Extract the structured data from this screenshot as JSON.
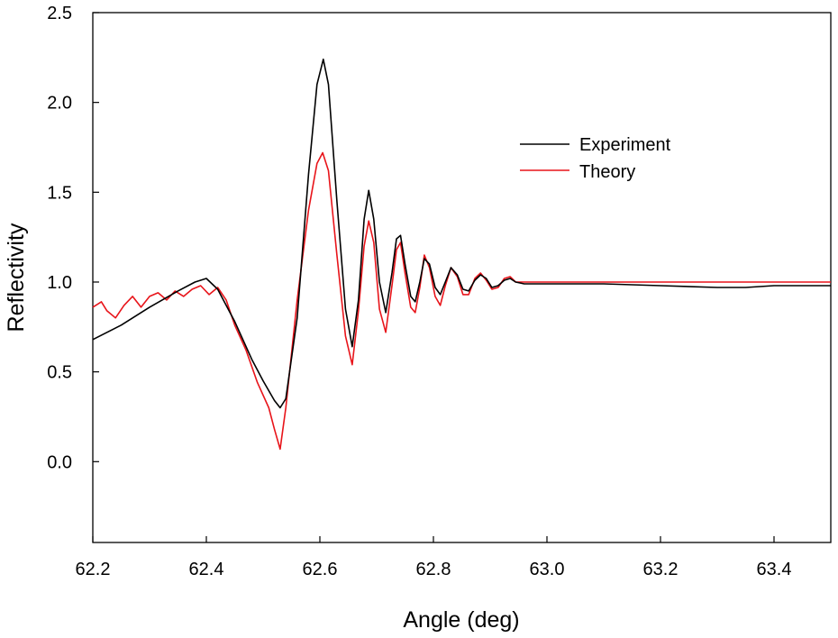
{
  "chart_data": {
    "type": "line",
    "title": "",
    "xlabel": "Angle (deg)",
    "ylabel": "Reflectivity",
    "xlim": [
      62.2,
      63.5
    ],
    "ylim": [
      -0.45,
      2.5
    ],
    "xticks": [
      62.2,
      62.4,
      62.6,
      62.8,
      63.0,
      63.2,
      63.4
    ],
    "xtick_labels": [
      "62.2",
      "62.4",
      "62.6",
      "62.8",
      "63.0",
      "63.2",
      "63.4"
    ],
    "yticks": [
      0.0,
      0.5,
      1.0,
      1.5,
      2.0,
      2.5
    ],
    "ytick_labels": [
      "0.0",
      "0.5",
      "1.0",
      "1.5",
      "2.0",
      "2.5"
    ],
    "grid": false,
    "legend_position": "top-right",
    "series": [
      {
        "name": "Experiment",
        "color": "#000000",
        "x": [
          62.2,
          62.25,
          62.3,
          62.35,
          62.38,
          62.4,
          62.42,
          62.45,
          62.48,
          62.5,
          62.52,
          62.53,
          62.54,
          62.56,
          62.58,
          62.595,
          62.606,
          62.615,
          62.63,
          62.645,
          62.657,
          62.668,
          62.678,
          62.686,
          62.695,
          62.705,
          62.716,
          62.727,
          62.735,
          62.742,
          62.75,
          62.76,
          62.768,
          62.776,
          62.784,
          62.793,
          62.803,
          62.812,
          62.821,
          62.831,
          62.842,
          62.852,
          62.862,
          62.873,
          62.883,
          62.893,
          62.903,
          62.914,
          62.925,
          62.935,
          62.945,
          62.96,
          63.0,
          63.1,
          63.2,
          63.3,
          63.35,
          63.4,
          63.5
        ],
        "y": [
          0.68,
          0.76,
          0.86,
          0.95,
          1.0,
          1.02,
          0.96,
          0.78,
          0.57,
          0.45,
          0.34,
          0.3,
          0.35,
          0.8,
          1.6,
          2.1,
          2.24,
          2.1,
          1.45,
          0.85,
          0.64,
          0.9,
          1.35,
          1.51,
          1.35,
          1.0,
          0.83,
          1.05,
          1.24,
          1.26,
          1.1,
          0.92,
          0.89,
          1.0,
          1.13,
          1.1,
          0.97,
          0.93,
          1.0,
          1.08,
          1.04,
          0.96,
          0.95,
          1.01,
          1.04,
          1.02,
          0.97,
          0.98,
          1.01,
          1.02,
          1.0,
          0.99,
          0.99,
          0.99,
          0.98,
          0.97,
          0.97,
          0.98,
          0.98
        ]
      },
      {
        "name": "Theory",
        "color": "#e8141a",
        "x": [
          62.2,
          62.215,
          62.225,
          62.24,
          62.255,
          62.27,
          62.285,
          62.3,
          62.315,
          62.33,
          62.345,
          62.36,
          62.375,
          62.39,
          62.405,
          62.42,
          62.435,
          62.45,
          62.47,
          62.49,
          62.51,
          62.52,
          62.53,
          62.54,
          62.56,
          62.58,
          62.595,
          62.605,
          62.615,
          62.63,
          62.645,
          62.657,
          62.668,
          62.678,
          62.686,
          62.695,
          62.705,
          62.716,
          62.727,
          62.735,
          62.742,
          62.75,
          62.76,
          62.768,
          62.776,
          62.784,
          62.793,
          62.803,
          62.812,
          62.821,
          62.831,
          62.842,
          62.852,
          62.862,
          62.873,
          62.883,
          62.893,
          62.903,
          62.914,
          62.925,
          62.935,
          62.945,
          62.96,
          63.0,
          63.1,
          63.2,
          63.3,
          63.4,
          63.5
        ],
        "y": [
          0.86,
          0.89,
          0.84,
          0.8,
          0.87,
          0.92,
          0.86,
          0.92,
          0.94,
          0.9,
          0.95,
          0.92,
          0.96,
          0.98,
          0.93,
          0.97,
          0.9,
          0.76,
          0.62,
          0.44,
          0.3,
          0.18,
          0.07,
          0.3,
          0.9,
          1.4,
          1.66,
          1.72,
          1.62,
          1.15,
          0.7,
          0.54,
          0.84,
          1.2,
          1.34,
          1.22,
          0.85,
          0.72,
          0.98,
          1.18,
          1.22,
          1.05,
          0.86,
          0.83,
          0.97,
          1.15,
          1.08,
          0.92,
          0.87,
          0.98,
          1.08,
          1.03,
          0.93,
          0.93,
          1.02,
          1.05,
          1.01,
          0.96,
          0.97,
          1.02,
          1.03,
          1.0,
          1.0,
          1.0,
          1.0,
          1.0,
          1.0,
          1.0,
          1.0
        ]
      }
    ]
  }
}
